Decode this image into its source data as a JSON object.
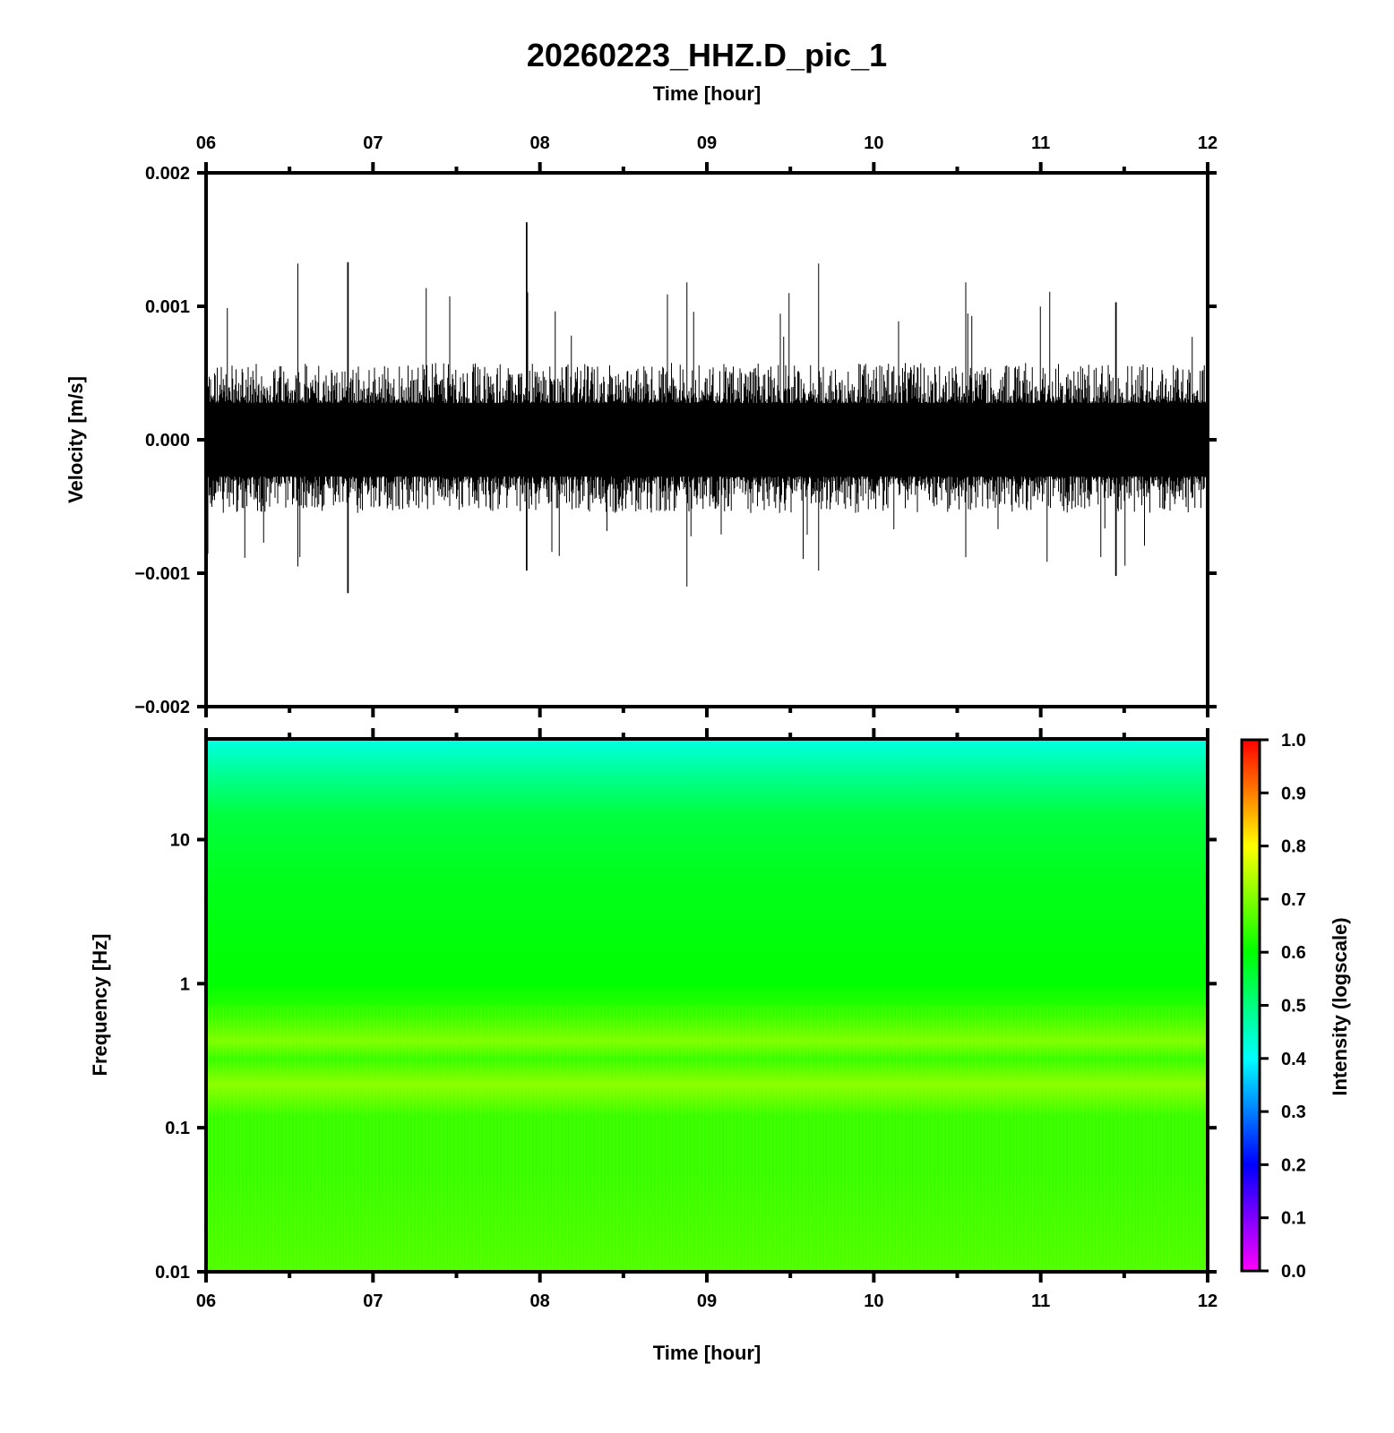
{
  "chart_data": [
    {
      "type": "line",
      "panel": "waveform",
      "title": "20260223_HHZ.D_pic_1",
      "xlabel": "Time [hour]",
      "ylabel": "Velocity [m/s]",
      "x_range_hours": [
        6,
        12
      ],
      "x_ticks": [
        "06",
        "07",
        "08",
        "09",
        "10",
        "11",
        "12"
      ],
      "ylim": [
        -0.002,
        0.002
      ],
      "y_ticks": [
        {
          "value": 0.002,
          "label": "0.002"
        },
        {
          "value": 0.001,
          "label": "0.001"
        },
        {
          "value": 0.0,
          "label": "0.000"
        },
        {
          "value": -0.001,
          "label": "−0.001"
        },
        {
          "value": -0.002,
          "label": "−0.002"
        }
      ],
      "envelope": {
        "typical_amplitude": 0.0005,
        "peak_max": 0.00163,
        "peak_max_time_hour": 7.92,
        "peak_min": -0.00121,
        "peak_min_time_hour": 6.95,
        "notable_spikes": [
          {
            "t": 6.55,
            "max": 0.00132,
            "min": -0.00095
          },
          {
            "t": 6.85,
            "max": 0.00133,
            "min": -0.00115
          },
          {
            "t": 7.92,
            "max": 0.00163,
            "min": -0.00098
          },
          {
            "t": 8.88,
            "max": 0.00118,
            "min": -0.0011
          },
          {
            "t": 9.67,
            "max": 0.00132,
            "min": -0.00098
          },
          {
            "t": 10.55,
            "max": 0.00118,
            "min": -0.00088
          },
          {
            "t": 11.45,
            "max": 0.00103,
            "min": -0.00102
          }
        ]
      },
      "color": "#000000"
    },
    {
      "type": "heatmap",
      "panel": "spectrogram",
      "xlabel": "Time [hour]",
      "ylabel": "Frequency [Hz]",
      "x_range_hours": [
        6,
        12
      ],
      "x_ticks": [
        "06",
        "07",
        "08",
        "09",
        "10",
        "11",
        "12"
      ],
      "y_scale": "log",
      "ylim_hz": [
        0.01,
        50
      ],
      "y_ticks": [
        {
          "value": 10,
          "label": "10"
        },
        {
          "value": 1,
          "label": "1"
        },
        {
          "value": 0.1,
          "label": "0.1"
        },
        {
          "value": 0.01,
          "label": "0.01"
        }
      ],
      "intensity_profile": [
        {
          "freq_hz": 50,
          "intensity": 0.42
        },
        {
          "freq_hz": 30,
          "intensity": 0.48
        },
        {
          "freq_hz": 15,
          "intensity": 0.55
        },
        {
          "freq_hz": 5,
          "intensity": 0.58
        },
        {
          "freq_hz": 1,
          "intensity": 0.6
        },
        {
          "freq_hz": 0.6,
          "intensity": 0.64
        },
        {
          "freq_hz": 0.4,
          "intensity": 0.7
        },
        {
          "freq_hz": 0.3,
          "intensity": 0.64
        },
        {
          "freq_hz": 0.2,
          "intensity": 0.71
        },
        {
          "freq_hz": 0.12,
          "intensity": 0.64
        },
        {
          "freq_hz": 0.05,
          "intensity": 0.64
        },
        {
          "freq_hz": 0.01,
          "intensity": 0.66
        }
      ],
      "colorbar": {
        "label": "Intensity (logscale)",
        "range": [
          0,
          1
        ],
        "ticks": [
          "0.0",
          "0.1",
          "0.2",
          "0.3",
          "0.4",
          "0.5",
          "0.6",
          "0.7",
          "0.8",
          "0.9",
          "1.0"
        ],
        "colormap": [
          "#ff00ff",
          "#7f00ff",
          "#0000ff",
          "#007fff",
          "#00ffff",
          "#00ff7f",
          "#00ff00",
          "#7fff00",
          "#ffff00",
          "#ff7f00",
          "#ff0000"
        ]
      }
    }
  ]
}
